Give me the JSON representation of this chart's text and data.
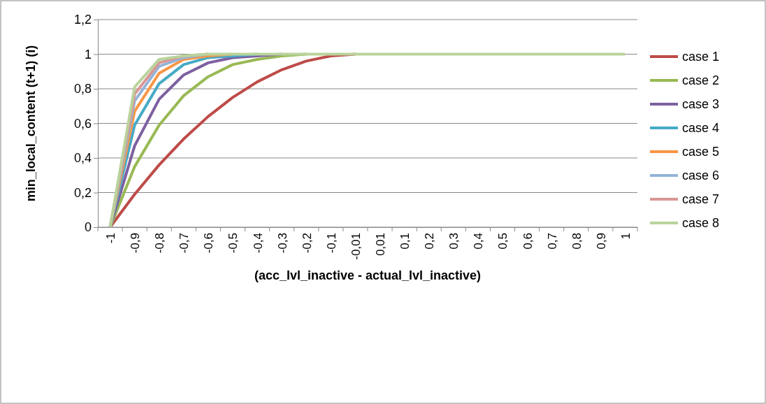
{
  "chart_data": {
    "type": "line",
    "xlabel": "(acc_lvl_inactive - actual_lvl_inactive)",
    "ylabel": "min_local_content (t+1) (i)",
    "categories": [
      "-1",
      "-0,9",
      "-0,8",
      "-0,7",
      "-0,6",
      "-0,5",
      "-0,4",
      "-0,3",
      "-0,2",
      "-0,1",
      "-0,01",
      "0,01",
      "0,1",
      "0,2",
      "0,3",
      "0,4",
      "0,5",
      "0,6",
      "0,7",
      "0,8",
      "0,9",
      "1"
    ],
    "series": [
      {
        "name": "case 1",
        "color": "#be4b48",
        "values": [
          0,
          0.19,
          0.36,
          0.51,
          0.64,
          0.75,
          0.84,
          0.91,
          0.96,
          0.99,
          1,
          null,
          null,
          null,
          null,
          null,
          null,
          null,
          null,
          null,
          null,
          null
        ]
      },
      {
        "name": "case 2",
        "color": "#98b954",
        "values": [
          0,
          0.35,
          0.59,
          0.76,
          0.87,
          0.94,
          0.97,
          0.99,
          1,
          null,
          null,
          null,
          null,
          null,
          null,
          null,
          null,
          null,
          null,
          null,
          null,
          null
        ]
      },
      {
        "name": "case 3",
        "color": "#7d60a0",
        "values": [
          0,
          0.47,
          0.74,
          0.88,
          0.95,
          0.98,
          0.99,
          1,
          null,
          null,
          null,
          null,
          null,
          null,
          null,
          null,
          null,
          null,
          null,
          null,
          null,
          null
        ]
      },
      {
        "name": "case 4",
        "color": "#46aac5",
        "values": [
          0,
          0.59,
          0.83,
          0.94,
          0.98,
          0.99,
          1,
          null,
          null,
          null,
          null,
          null,
          null,
          null,
          null,
          null,
          null,
          null,
          null,
          null,
          null,
          null
        ]
      },
      {
        "name": "case 5",
        "color": "#f79646",
        "values": [
          0,
          0.67,
          0.89,
          0.97,
          0.99,
          1,
          null,
          null,
          null,
          null,
          null,
          null,
          null,
          null,
          null,
          null,
          null,
          null,
          null,
          null,
          null,
          null
        ]
      },
      {
        "name": "case 6",
        "color": "#95b3d7",
        "values": [
          0,
          0.73,
          0.93,
          0.98,
          1,
          null,
          null,
          null,
          null,
          null,
          null,
          null,
          null,
          null,
          null,
          null,
          null,
          null,
          null,
          null,
          null,
          null
        ]
      },
      {
        "name": "case 7",
        "color": "#d99694",
        "values": [
          0,
          0.77,
          0.95,
          0.99,
          1,
          null,
          null,
          null,
          null,
          null,
          null,
          null,
          null,
          null,
          null,
          null,
          null,
          null,
          null,
          null,
          null,
          null
        ]
      },
      {
        "name": "case 8",
        "color": "#b9d39b",
        "values": [
          0,
          0.81,
          0.97,
          0.99,
          1,
          1,
          1,
          1,
          1,
          1,
          1,
          1,
          1,
          1,
          1,
          1,
          1,
          1,
          1,
          1,
          1,
          1
        ]
      }
    ],
    "ylim": [
      0,
      1.2
    ],
    "yticks": [
      0,
      {
        "value": 0.2,
        "label": "0,2"
      },
      {
        "value": 0.4,
        "label": "0,4"
      },
      {
        "value": 0.6,
        "label": "0,6"
      },
      {
        "value": 0.8,
        "label": "0,8"
      },
      1,
      {
        "value": 1.2,
        "label": "1,2"
      }
    ],
    "grid": "y",
    "legend": "right",
    "marker": "none",
    "line_style": "solid"
  }
}
